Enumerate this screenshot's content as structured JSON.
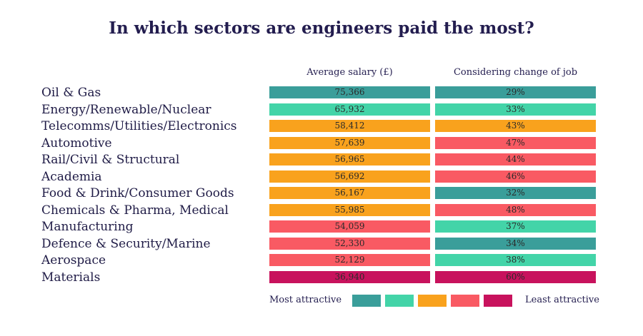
{
  "chart_data": {
    "type": "table",
    "title": "In which sectors are engineers paid the most?",
    "columns": [
      "Average salary (£)",
      "Considering change of job"
    ],
    "rows": [
      {
        "sector": "Oil & Gas",
        "salary": "75,366",
        "salary_rank": 1,
        "change": "29%",
        "change_rank": 1
      },
      {
        "sector": "Energy/Renewable/Nuclear",
        "salary": "65,932",
        "salary_rank": 2,
        "change": "33%",
        "change_rank": 2
      },
      {
        "sector": "Telecomms/Utilities/Electronics",
        "salary": "58,412",
        "salary_rank": 3,
        "change": "43%",
        "change_rank": 3
      },
      {
        "sector": "Automotive",
        "salary": "57,639",
        "salary_rank": 3,
        "change": "47%",
        "change_rank": 4
      },
      {
        "sector": "Rail/Civil & Structural",
        "salary": "56,965",
        "salary_rank": 3,
        "change": "44%",
        "change_rank": 4
      },
      {
        "sector": "Academia",
        "salary": "56,692",
        "salary_rank": 3,
        "change": "46%",
        "change_rank": 4
      },
      {
        "sector": "Food & Drink/Consumer Goods",
        "salary": "56,167",
        "salary_rank": 3,
        "change": "32%",
        "change_rank": 1
      },
      {
        "sector": "Chemicals & Pharma, Medical",
        "salary": "55,985",
        "salary_rank": 3,
        "change": "48%",
        "change_rank": 4
      },
      {
        "sector": "Manufacturing",
        "salary": "54,059",
        "salary_rank": 4,
        "change": "37%",
        "change_rank": 2
      },
      {
        "sector": "Defence & Security/Marine",
        "salary": "52,330",
        "salary_rank": 4,
        "change": "34%",
        "change_rank": 1
      },
      {
        "sector": "Aerospace",
        "salary": "52,129",
        "salary_rank": 4,
        "change": "38%",
        "change_rank": 2
      },
      {
        "sector": "Materials",
        "salary": "36,940",
        "salary_rank": 5,
        "change": "60%",
        "change_rank": 5
      }
    ],
    "legend": {
      "most_label": "Most attractive",
      "least_label": "Least attractive",
      "scale_colors": [
        "#3a9e9a",
        "#43d4a8",
        "#f9a21d",
        "#f95a63",
        "#c8125d"
      ]
    }
  }
}
